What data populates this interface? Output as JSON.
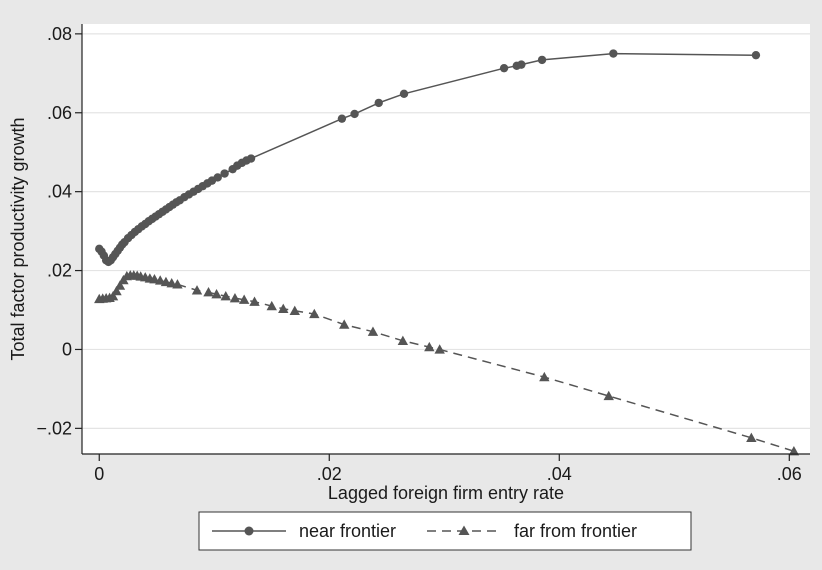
{
  "colors": {
    "outer_background": "#e8e8e8",
    "plot_background": "#ffffff",
    "grid": "#e4e4e4",
    "near_series": "#555555",
    "far_series": "#555555"
  },
  "chart_data": {
    "type": "line",
    "xlabel": "Lagged foreign firm entry rate",
    "ylabel": "Total factor productivity growth",
    "xlim": [
      -0.0015,
      0.0618
    ],
    "ylim": [
      -0.0265,
      0.0825
    ],
    "x_ticks": [
      0,
      0.02,
      0.04,
      0.06
    ],
    "x_tick_labels": [
      "0",
      ".02",
      ".04",
      ".06"
    ],
    "y_ticks": [
      -0.02,
      0,
      0.02,
      0.04,
      0.06,
      0.08
    ],
    "y_tick_labels": [
      "−.02",
      "0",
      ".02",
      ".04",
      ".06",
      ".08"
    ],
    "grid": "horizontal",
    "legend_position": "bottom",
    "series": [
      {
        "name": "near frontier",
        "marker": "circle",
        "line_style": "solid",
        "x": [
          0.0,
          0.0002,
          0.0004,
          0.0006,
          0.0008,
          0.001,
          0.0012,
          0.0014,
          0.0016,
          0.0018,
          0.002,
          0.0022,
          0.0025,
          0.0028,
          0.0031,
          0.0034,
          0.0037,
          0.004,
          0.0043,
          0.0046,
          0.0049,
          0.0052,
          0.0055,
          0.0058,
          0.0061,
          0.0064,
          0.0067,
          0.007,
          0.0074,
          0.0078,
          0.0082,
          0.0086,
          0.009,
          0.0094,
          0.0098,
          0.0103,
          0.0109,
          0.0116,
          0.012,
          0.0124,
          0.0128,
          0.0132,
          0.0211,
          0.0222,
          0.0243,
          0.0265,
          0.0352,
          0.0363,
          0.0367,
          0.0385,
          0.0447,
          0.0571
        ],
        "y": [
          0.0255,
          0.0248,
          0.0238,
          0.0226,
          0.0222,
          0.0226,
          0.0234,
          0.0242,
          0.025,
          0.0258,
          0.0266,
          0.0272,
          0.0282,
          0.029,
          0.0298,
          0.0305,
          0.0312,
          0.0318,
          0.0325,
          0.0331,
          0.0337,
          0.0343,
          0.0349,
          0.0355,
          0.0361,
          0.0367,
          0.0373,
          0.0378,
          0.0386,
          0.0393,
          0.04,
          0.0407,
          0.0414,
          0.0421,
          0.0428,
          0.0436,
          0.0446,
          0.0457,
          0.0466,
          0.0473,
          0.0479,
          0.0484,
          0.0585,
          0.0597,
          0.0625,
          0.0648,
          0.0713,
          0.0719,
          0.0722,
          0.0734,
          0.075,
          0.0746
        ]
      },
      {
        "name": "far from frontier",
        "marker": "triangle",
        "line_style": "dashed",
        "x": [
          0.0,
          0.0003,
          0.0006,
          0.0009,
          0.0012,
          0.0015,
          0.0018,
          0.0021,
          0.0024,
          0.0027,
          0.003,
          0.0033,
          0.0036,
          0.004,
          0.0044,
          0.0048,
          0.0053,
          0.0058,
          0.0063,
          0.0068,
          0.0085,
          0.0095,
          0.0102,
          0.011,
          0.0118,
          0.0126,
          0.0135,
          0.015,
          0.016,
          0.017,
          0.0187,
          0.0213,
          0.0238,
          0.0264,
          0.0287,
          0.0296,
          0.0387,
          0.0443,
          0.0567,
          0.0604
        ],
        "y": [
          0.0128,
          0.0129,
          0.013,
          0.0131,
          0.0135,
          0.0148,
          0.0162,
          0.0176,
          0.0186,
          0.0188,
          0.0188,
          0.0187,
          0.0185,
          0.0183,
          0.018,
          0.0178,
          0.0175,
          0.0171,
          0.0168,
          0.0165,
          0.015,
          0.0145,
          0.014,
          0.0135,
          0.013,
          0.0126,
          0.0121,
          0.011,
          0.0103,
          0.0098,
          0.009,
          0.0063,
          0.0045,
          0.0022,
          0.0006,
          0.0,
          -0.007,
          -0.0118,
          -0.0224,
          -0.0258
        ]
      }
    ]
  }
}
